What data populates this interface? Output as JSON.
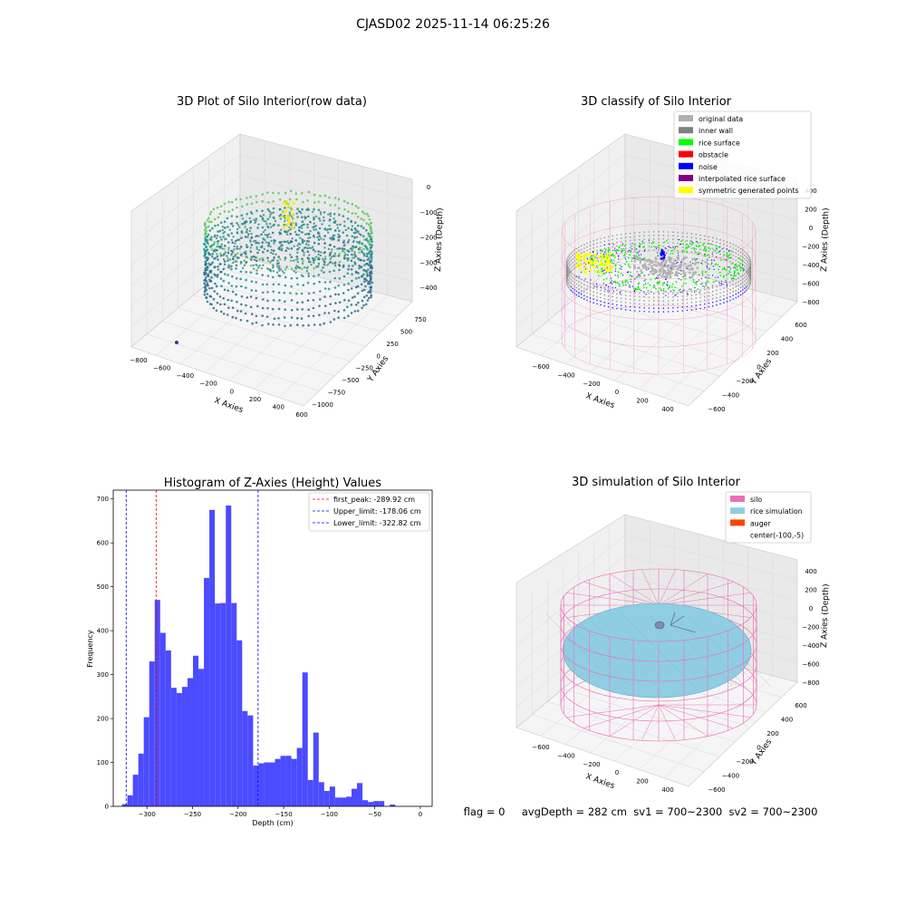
{
  "figure_title": "CJASD02 2025-11-14 06:25:26",
  "colors": {
    "hist_bar": "#4B4BFF",
    "first_peak_line": "#FF0000",
    "upper_limit_line": "#0000FF",
    "lower_limit_line": "#0000FF",
    "pane": "#F2F2F2",
    "grid": "#D9D9D9",
    "silo_wire": "#F06EB4",
    "rice_sim": "#8FCDE3",
    "auger": "#FF4500"
  },
  "chart_data": [
    {
      "type": "scatter3d",
      "title": "3D Plot of Silo Interior(row data)",
      "xlabel": "X Axies",
      "ylabel": "Y Axies",
      "zlabel": "Z Axies (Depth)",
      "x_ticks": [
        "−800",
        "−600",
        "−400",
        "−200",
        "0",
        "200",
        "400",
        "600"
      ],
      "y_ticks": [
        "750",
        "500",
        "250",
        "0",
        "−250",
        "−500",
        "−750",
        "−1000"
      ],
      "z_ticks": [
        "0",
        "−100",
        "−200",
        "−300",
        "−400"
      ],
      "colormap": "viridis"
    },
    {
      "type": "scatter3d",
      "title": "3D classify of Silo Interior",
      "xlabel": "X Axies",
      "ylabel": "Y Axies",
      "zlabel": "Z Axies (Depth)",
      "x_ticks": [
        "−600",
        "−400",
        "−200",
        "0",
        "200",
        "400"
      ],
      "y_ticks": [
        "600",
        "400",
        "200",
        "0",
        "−200",
        "−400",
        "−600"
      ],
      "z_ticks": [
        "400",
        "200",
        "0",
        "−200",
        "−400",
        "−600",
        "−800"
      ],
      "legend": [
        {
          "label": "original data",
          "color": "#B0B0B0"
        },
        {
          "label": "inner wall",
          "color": "#808080"
        },
        {
          "label": "rice surface",
          "color": "#00FF00"
        },
        {
          "label": "obstacle",
          "color": "#FF0000"
        },
        {
          "label": "noise",
          "color": "#0000FF"
        },
        {
          "label": "interpolated rice surface",
          "color": "#800080"
        },
        {
          "label": "symmetric generated points",
          "color": "#FFFF00"
        }
      ],
      "legend_position": "top-right"
    },
    {
      "type": "bar",
      "title": "Histogram of Z-Axies (Height) Values",
      "xlabel": "Depth (cm)",
      "ylabel": "Frequency",
      "xlim": [
        -337,
        13
      ],
      "ylim": [
        0,
        720
      ],
      "x_ticks": [
        -300,
        -250,
        -200,
        -150,
        -100,
        -50,
        0
      ],
      "x_tick_labels": [
        "−300",
        "−250",
        "−200",
        "−150",
        "−100",
        "−50",
        "0"
      ],
      "y_ticks": [
        0,
        100,
        200,
        300,
        400,
        500,
        600,
        700
      ],
      "bin_start": -327.5,
      "bin_width": 6,
      "values": [
        5,
        25,
        72,
        120,
        203,
        330,
        470,
        395,
        355,
        270,
        258,
        272,
        292,
        343,
        313,
        520,
        675,
        462,
        463,
        685,
        463,
        378,
        217,
        207,
        93,
        98,
        100,
        100,
        108,
        115,
        115,
        108,
        133,
        305,
        60,
        168,
        55,
        35,
        45,
        20,
        20,
        22,
        40,
        53,
        14,
        10,
        12,
        12,
        0,
        4
      ],
      "vlines": [
        {
          "label": "first_peak: -289.92 cm",
          "x": -289.92,
          "color": "#FF0000"
        },
        {
          "label": "Upper_limit: -178.06 cm",
          "x": -178.06,
          "color": "#0000FF"
        },
        {
          "label": "Lower_limit: -322.82 cm",
          "x": -322.82,
          "color": "#0000FF"
        }
      ],
      "legend_position": "top-right"
    },
    {
      "type": "surface3d",
      "title": "3D simulation of Silo Interior",
      "xlabel": "X Axies",
      "ylabel": "Y Axies",
      "zlabel": "Z Axies (Depth)",
      "x_ticks": [
        "−600",
        "−400",
        "−200",
        "0",
        "200",
        "400"
      ],
      "y_ticks": [
        "600",
        "400",
        "200",
        "0",
        "−200",
        "−400",
        "−600"
      ],
      "z_ticks": [
        "400",
        "200",
        "0",
        "−200",
        "−400",
        "−600",
        "−800"
      ],
      "legend": [
        {
          "label": "silo",
          "color": "#F06EB4"
        },
        {
          "label": "rice simulation",
          "color": "#8FCDE3"
        },
        {
          "label": "auger",
          "color": "#FF4500"
        },
        {
          "label": "center(-100,-5)",
          "color": ""
        }
      ],
      "legend_position": "top-right"
    }
  ],
  "status_text": "flag = 0     avgDepth = 282 cm  sv1 = 700~2300  sv2 = 700~2300"
}
